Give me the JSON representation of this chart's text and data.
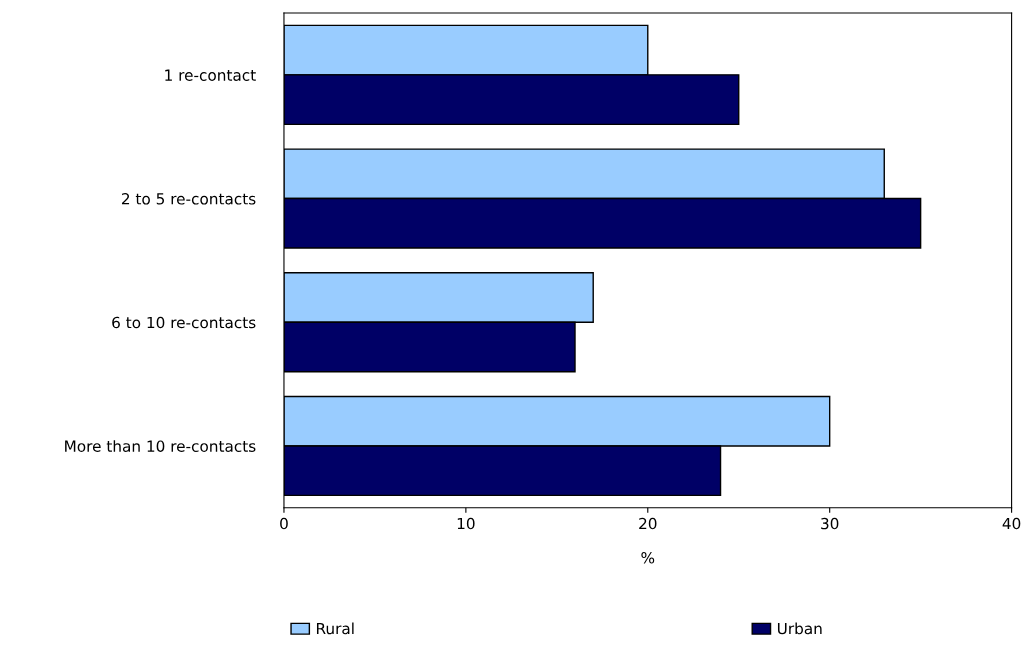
{
  "chart_data": {
    "type": "bar",
    "orientation": "horizontal",
    "xlabel": "%",
    "categories": [
      "1 re-contact",
      "2 to 5 re-contacts",
      "6 to 10 re-contacts",
      "More than 10 re-contacts"
    ],
    "series": [
      {
        "name": "Rural",
        "color": "#99ccff",
        "values": [
          20,
          33,
          17,
          30
        ]
      },
      {
        "name": "Urban",
        "color": "#000066",
        "values": [
          25,
          35,
          16,
          24
        ]
      }
    ],
    "xlim": [
      0,
      40
    ],
    "xticks": [
      0,
      10,
      20,
      30,
      40
    ],
    "grid": false,
    "legend": "bottom"
  }
}
